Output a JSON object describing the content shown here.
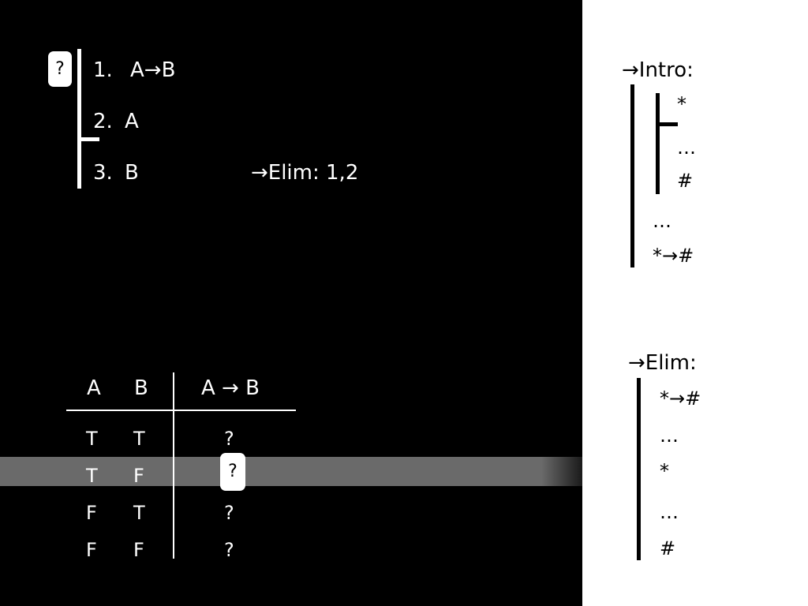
{
  "proof": {
    "badge": "?",
    "lines": [
      {
        "num": "1.",
        "formula": "A→B"
      },
      {
        "num": "2.",
        "formula": "A"
      },
      {
        "num": "3.",
        "formula": "B",
        "justification": "→Elim: 1,2"
      }
    ]
  },
  "truth_table": {
    "headers": [
      "A",
      "B",
      "A → B"
    ],
    "rows": [
      [
        "T",
        "T",
        "?"
      ],
      [
        "T",
        "F",
        "?"
      ],
      [
        "F",
        "T",
        "?"
      ],
      [
        "F",
        "F",
        "?"
      ]
    ],
    "highlighted_row": 1
  },
  "rules": {
    "intro": {
      "title": "→Intro:",
      "sub": [
        "*",
        "…",
        "#"
      ],
      "rest": [
        "…",
        "*→#"
      ]
    },
    "elim": {
      "title": "→Elim:",
      "items": [
        "*→#",
        "…",
        "*",
        "…",
        "#"
      ]
    }
  },
  "colors": {
    "left_background": "#000000",
    "right_background": "#ffffff",
    "highlight_row": "#6a6a6a"
  }
}
